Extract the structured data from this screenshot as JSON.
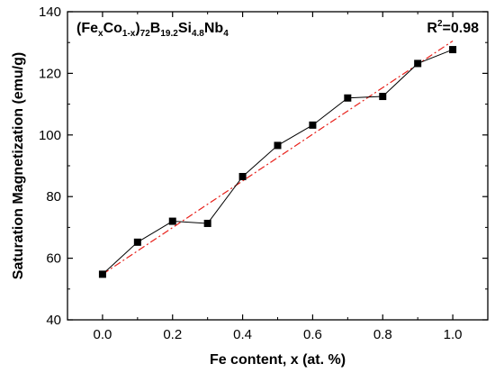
{
  "chart_data": {
    "type": "scatter",
    "title": "",
    "xlabel": "Fe content, x (at. %)",
    "ylabel": "Saturation Magnetization (emu/g)",
    "xlim": [
      -0.1,
      1.1
    ],
    "ylim": [
      40,
      140
    ],
    "xticks": [
      "0.0",
      "0.2",
      "0.4",
      "0.6",
      "0.8",
      "1.0"
    ],
    "yticks": [
      "40",
      "60",
      "80",
      "100",
      "120",
      "140"
    ],
    "grid": false,
    "legend": "none",
    "series": [
      {
        "marker": "square",
        "connected": true,
        "color": "#000000",
        "x": [
          0.0,
          0.1,
          0.2,
          0.3,
          0.4,
          0.5,
          0.6,
          0.7,
          0.8,
          0.9,
          1.0
        ],
        "y": [
          54.8,
          65.2,
          72.0,
          71.3,
          86.5,
          96.6,
          103.2,
          112.0,
          112.5,
          123.2,
          127.7
        ]
      }
    ],
    "fit": {
      "style": "dash-dot",
      "color": "#e8201a",
      "x": [
        0.0,
        1.0
      ],
      "y": [
        54.8,
        130.5
      ]
    },
    "annotations": {
      "composition": {
        "parts": [
          {
            "text": "(Fe",
            "shift": "base"
          },
          {
            "text": "x",
            "shift": "sub"
          },
          {
            "text": "Co",
            "shift": "base"
          },
          {
            "text": "1-x",
            "shift": "sub"
          },
          {
            "text": ")",
            "shift": "base"
          },
          {
            "text": "72",
            "shift": "sub"
          },
          {
            "text": "B",
            "shift": "base"
          },
          {
            "text": "19.2",
            "shift": "sub"
          },
          {
            "text": "Si",
            "shift": "base"
          },
          {
            "text": "4.8",
            "shift": "sub"
          },
          {
            "text": "Nb",
            "shift": "base"
          },
          {
            "text": "4",
            "shift": "sub"
          }
        ]
      },
      "r_squared": {
        "parts": [
          {
            "text": "R",
            "shift": "base"
          },
          {
            "text": "2",
            "shift": "super"
          },
          {
            "text": "=0.98",
            "shift": "base"
          }
        ]
      }
    }
  }
}
